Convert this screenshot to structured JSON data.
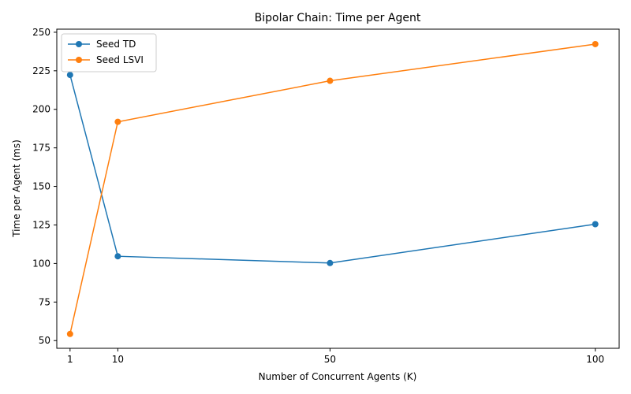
{
  "chart_data": {
    "type": "line",
    "title": "Bipolar Chain: Time per Agent",
    "xlabel": "Number of Concurrent Agents (K)",
    "ylabel": "Time per Agent (ms)",
    "x": [
      1,
      10,
      50,
      100
    ],
    "x_ticks": [
      1,
      10,
      50,
      100
    ],
    "y_ticks": [
      50,
      75,
      100,
      125,
      150,
      175,
      200,
      225,
      250
    ],
    "xlim": [
      -1.5,
      104.5
    ],
    "ylim": [
      45,
      252
    ],
    "grid": false,
    "legend_position": "top-left",
    "series": [
      {
        "name": "Seed TD",
        "color": "#1f77b4",
        "values": [
          222.3,
          104.7,
          100.3,
          125.5
        ]
      },
      {
        "name": "Seed LSVI",
        "color": "#ff7f0e",
        "values": [
          54.3,
          191.9,
          218.5,
          242.3
        ]
      }
    ]
  }
}
